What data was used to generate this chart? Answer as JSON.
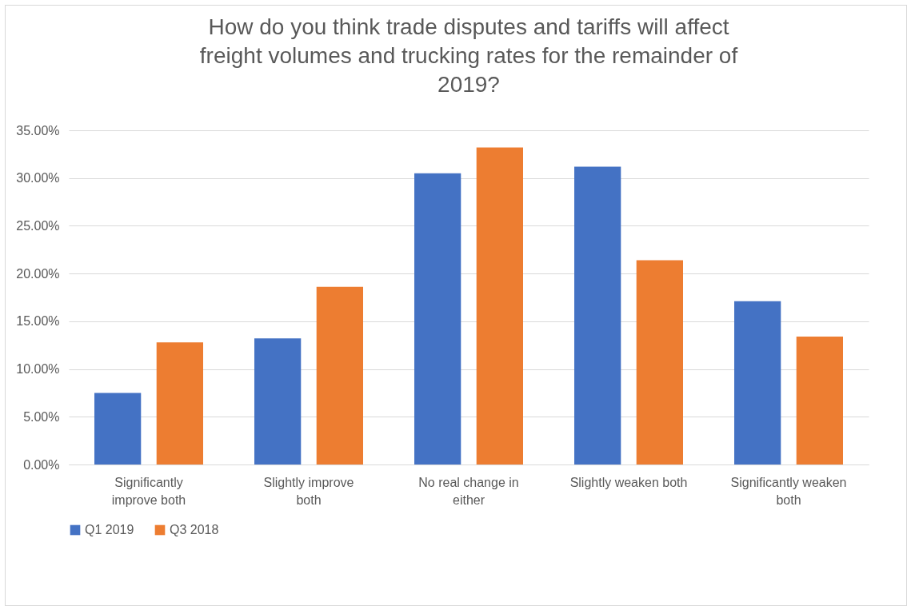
{
  "chart_data": {
    "type": "bar",
    "title": "How do you think trade disputes and tariffs will affect freight volumes and trucking rates for the remainder of 2019?",
    "categories": [
      "Significantly improve both",
      "Slightly improve both",
      "No real change in either",
      "Slightly weaken both",
      "Significantly weaken both"
    ],
    "series": [
      {
        "name": "Q1 2019",
        "color": "#4472c4",
        "values": [
          7.5,
          13.2,
          30.5,
          31.2,
          17.1
        ]
      },
      {
        "name": "Q3 2018",
        "color": "#ed7d31",
        "values": [
          12.8,
          18.6,
          33.2,
          21.4,
          13.4
        ]
      }
    ],
    "ylim": [
      0,
      35
    ],
    "yticks": [
      {
        "value": 0,
        "label": "0.00%"
      },
      {
        "value": 5,
        "label": "5.00%"
      },
      {
        "value": 10,
        "label": "10.00%"
      },
      {
        "value": 15,
        "label": "15.00%"
      },
      {
        "value": 20,
        "label": "20.00%"
      },
      {
        "value": 25,
        "label": "25.00%"
      },
      {
        "value": 30,
        "label": "30.00%"
      },
      {
        "value": 35,
        "label": "35.00%"
      }
    ],
    "grid": "y",
    "legend": "bottom"
  }
}
